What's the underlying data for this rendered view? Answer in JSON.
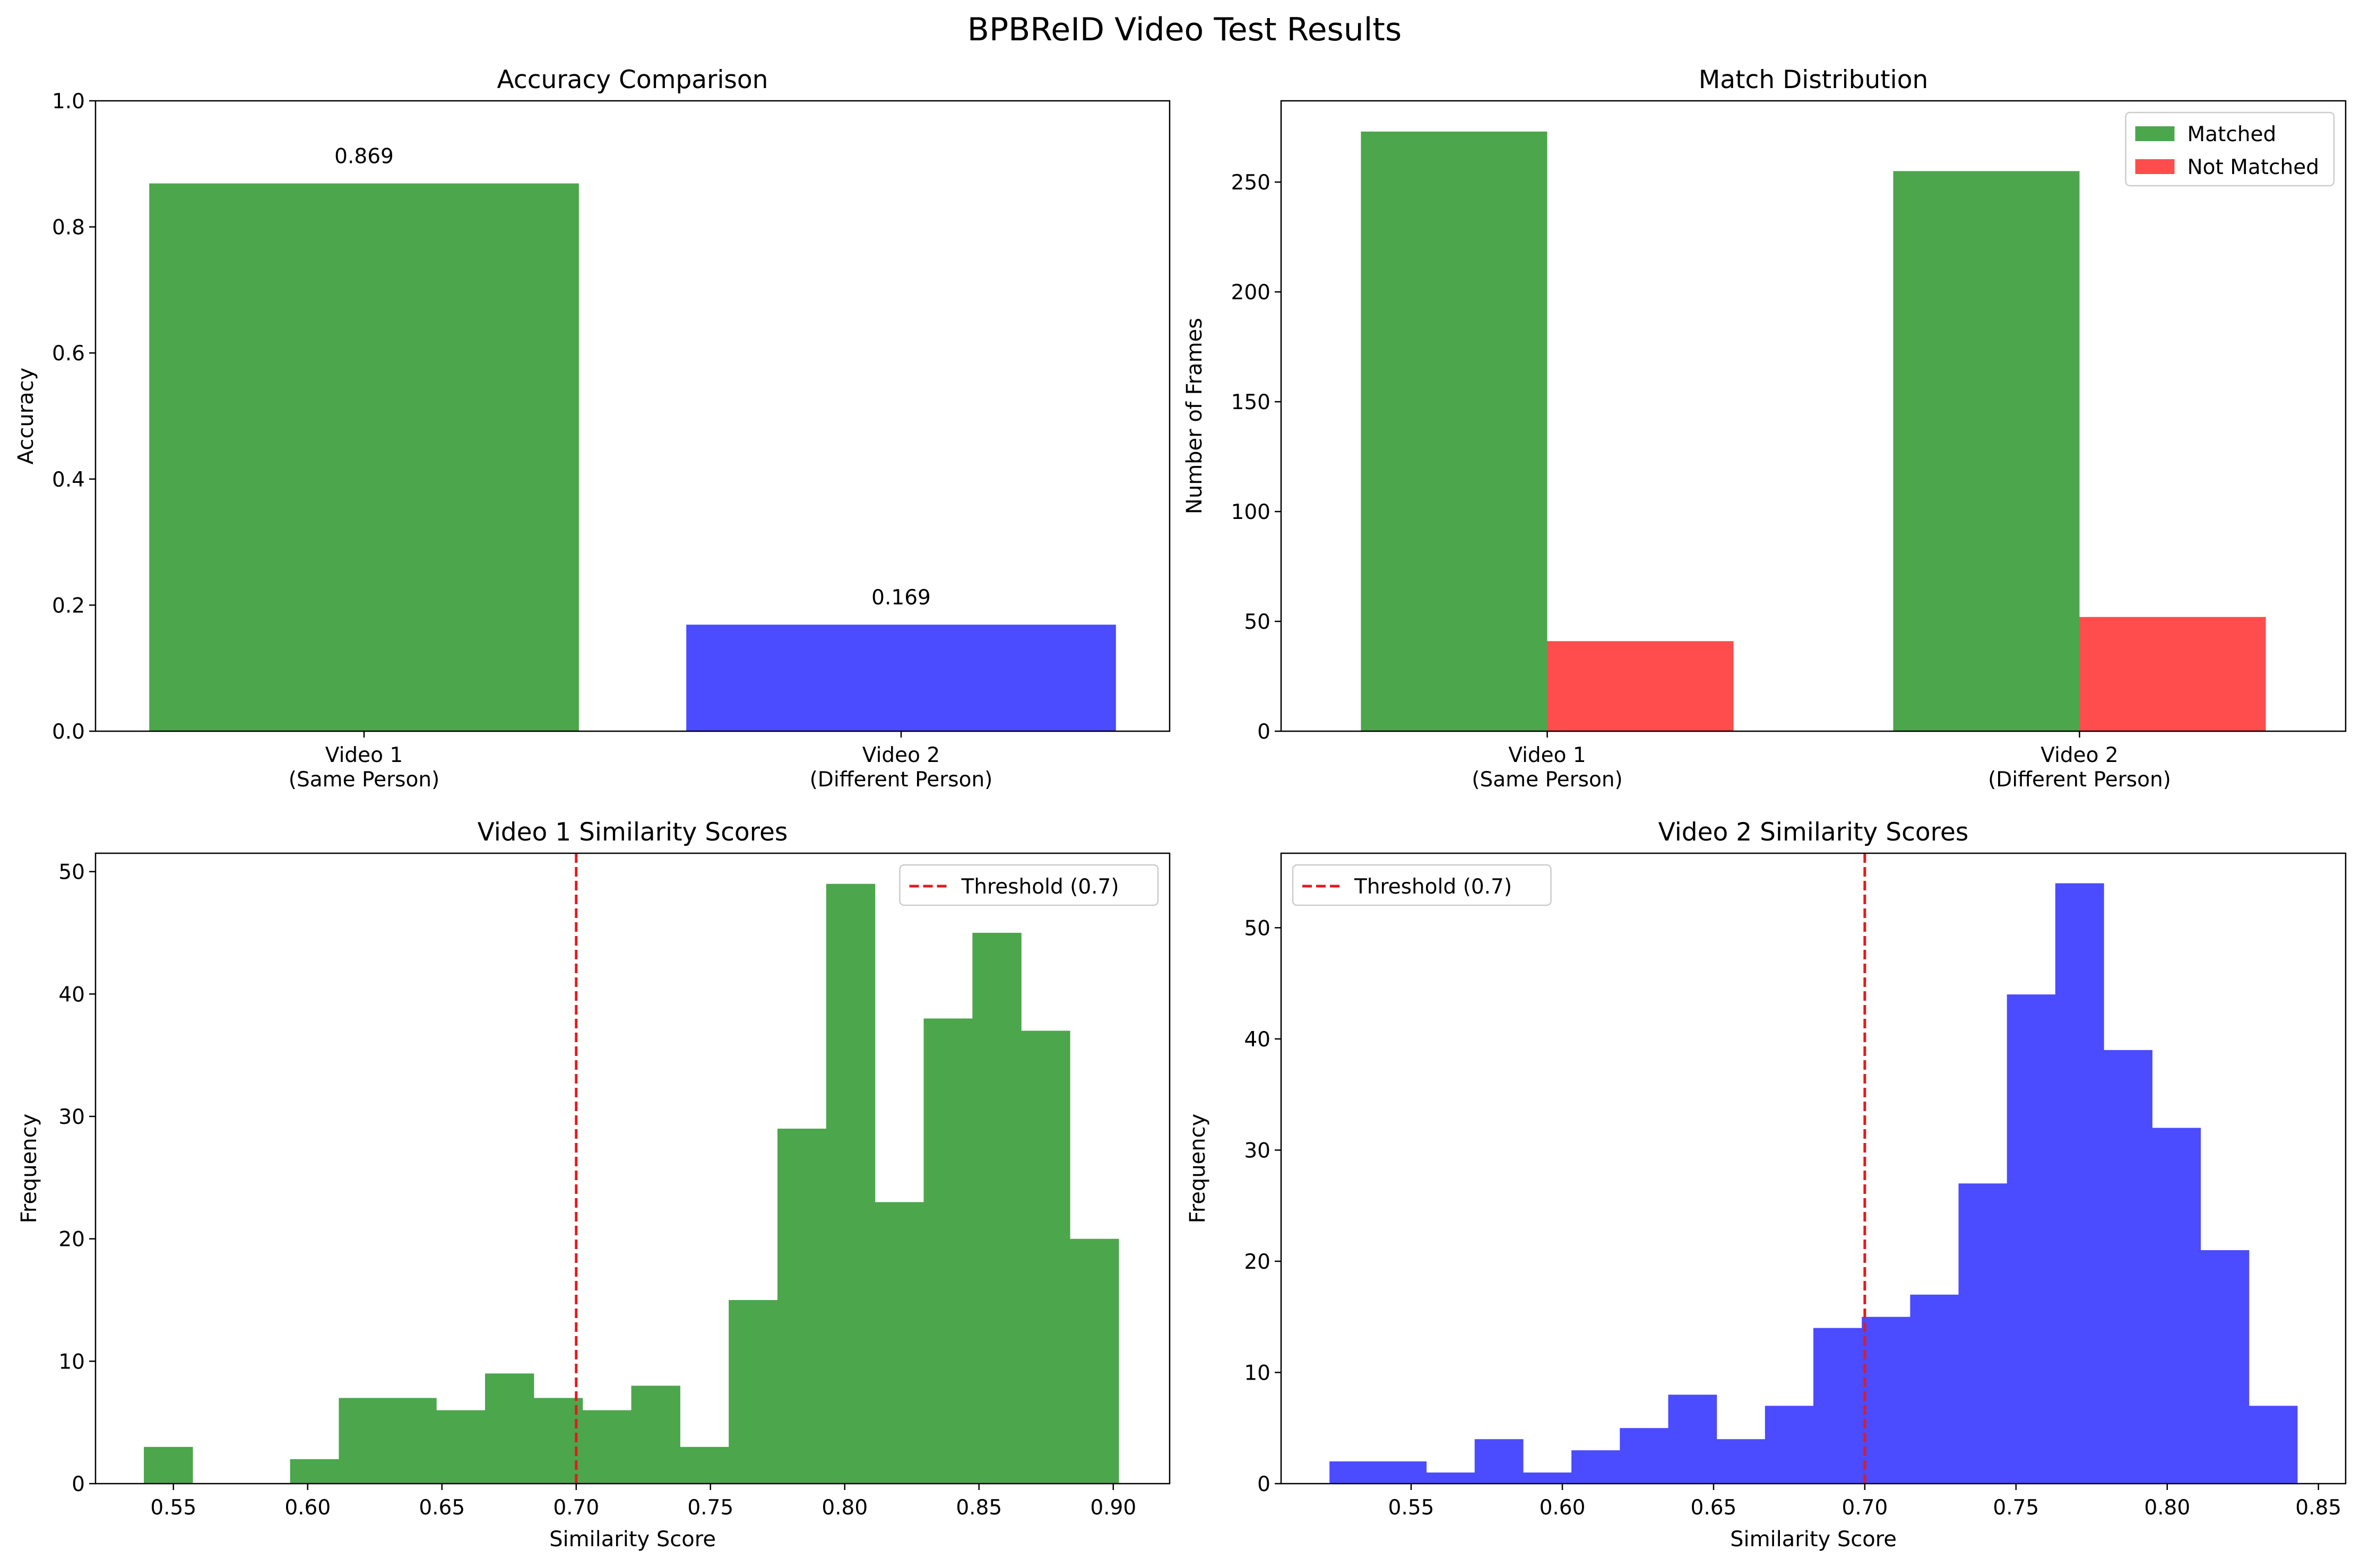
{
  "figure": {
    "title": "BPBReID Video Test Results"
  },
  "colors": {
    "green": "#4ca64c",
    "blue": "#4b4bff",
    "red": "#ff4c4c",
    "threshold": "#e41a1c"
  },
  "chart_data": [
    {
      "id": "accuracy",
      "type": "bar",
      "title": "Accuracy Comparison",
      "xlabel": "",
      "ylabel": "Accuracy",
      "categories": [
        "Video 1\n(Same Person)",
        "Video 2\n(Different Person)"
      ],
      "values": [
        0.869,
        0.169
      ],
      "labels": [
        "0.869",
        "0.169"
      ],
      "bar_colors": [
        "green",
        "blue"
      ],
      "ylim": [
        0,
        1.0
      ],
      "yticks": [
        "0.0",
        "0.2",
        "0.4",
        "0.6",
        "0.8",
        "1.0"
      ],
      "grid": false
    },
    {
      "id": "distribution",
      "type": "bar",
      "title": "Match Distribution",
      "xlabel": "",
      "ylabel": "Number of Frames",
      "categories": [
        "Video 1\n(Same Person)",
        "Video 2\n(Different Person)"
      ],
      "series": [
        {
          "name": "Matched",
          "values": [
            273,
            255
          ],
          "color": "green"
        },
        {
          "name": "Not Matched",
          "values": [
            41,
            52
          ],
          "color": "red"
        }
      ],
      "ylim": [
        0,
        287
      ],
      "yticks": [
        "0",
        "50",
        "100",
        "150",
        "200",
        "250"
      ],
      "legend": "top-right",
      "grid": false
    },
    {
      "id": "video1_hist",
      "type": "bar",
      "title": "Video 1 Similarity Scores",
      "xlabel": "Similarity Score",
      "ylabel": "Frequency",
      "bin_start": 0.539,
      "bin_width": 0.01815,
      "counts": [
        3,
        0,
        0,
        2,
        7,
        7,
        6,
        9,
        7,
        6,
        8,
        3,
        15,
        29,
        49,
        23,
        38,
        45,
        37,
        20
      ],
      "color": "green",
      "xlim": [
        0.521,
        0.921
      ],
      "ylim": [
        0,
        51.5
      ],
      "xticks": [
        "0.55",
        "0.60",
        "0.65",
        "0.70",
        "0.75",
        "0.80",
        "0.85",
        "0.90"
      ],
      "yticks": [
        "0",
        "10",
        "20",
        "30",
        "40",
        "50"
      ],
      "threshold": 0.7,
      "threshold_label": "Threshold (0.7)",
      "legend": "top-right",
      "grid": false
    },
    {
      "id": "video2_hist",
      "type": "bar",
      "title": "Video 2 Similarity Scores",
      "xlabel": "Similarity Score",
      "ylabel": "Frequency",
      "bin_start": 0.523,
      "bin_width": 0.016,
      "counts": [
        2,
        2,
        1,
        4,
        1,
        3,
        5,
        8,
        4,
        7,
        14,
        15,
        17,
        27,
        44,
        54,
        39,
        32,
        21,
        7
      ],
      "color": "blue",
      "xlim": [
        0.507,
        0.859
      ],
      "ylim": [
        0,
        56.7
      ],
      "xticks": [
        "0.55",
        "0.60",
        "0.65",
        "0.70",
        "0.75",
        "0.80",
        "0.85"
      ],
      "yticks": [
        "0",
        "10",
        "20",
        "30",
        "40",
        "50"
      ],
      "threshold": 0.7,
      "threshold_label": "Threshold (0.7)",
      "legend": "top-left",
      "grid": false
    }
  ]
}
